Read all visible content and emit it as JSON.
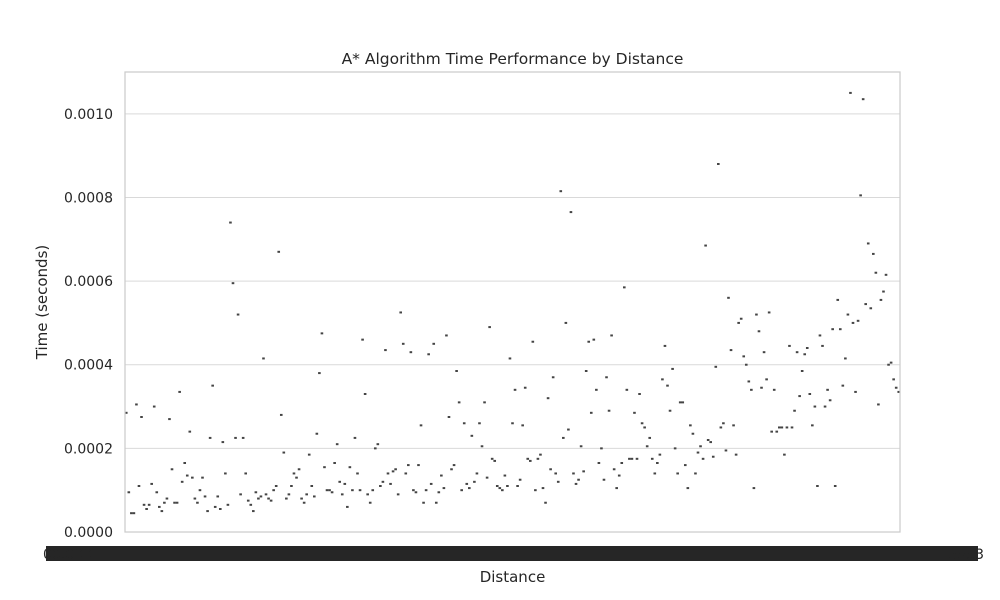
{
  "chart_data": {
    "type": "scatter",
    "title": "A* Algorithm Time Performance by Distance",
    "xlabel": "Distance",
    "ylabel": "Time (seconds)",
    "ylim": [
      0,
      0.0011
    ],
    "yticks": [
      "0.0000",
      "0.0002",
      "0.0004",
      "0.0006",
      "0.0008",
      "0.0010"
    ],
    "ytick_values": [
      0,
      0.0002,
      0.0004,
      0.0006,
      0.0008,
      0.001
    ],
    "grid": true,
    "x_axis_note": "categorical; overlapping unreadable tick labels",
    "x_left_label": "00.000",
    "x_right_label": "5553",
    "series": [
      {
        "values": [
          0.000285,
          9.5e-05,
          4.5e-05,
          4.5e-05,
          0.000305,
          0.00011,
          0.000275,
          6.5e-05,
          5.5e-05,
          6.5e-05,
          0.000115,
          0.0003,
          9.5e-05,
          6e-05,
          5e-05,
          7e-05,
          8e-05,
          0.00027,
          0.00015,
          7e-05,
          7e-05,
          0.000335,
          0.00012,
          0.000165,
          0.000135,
          0.00024,
          0.00013,
          8e-05,
          7e-05,
          0.0001,
          0.00013,
          8.5e-05,
          5e-05,
          0.000225,
          0.00035,
          6e-05,
          8.5e-05,
          5.5e-05,
          0.000215,
          0.00014,
          6.5e-05,
          0.00074,
          0.000595,
          0.000225,
          0.00052,
          9e-05,
          0.000225,
          0.00014,
          7.5e-05,
          6.5e-05,
          5e-05,
          9.5e-05,
          8e-05,
          8.5e-05,
          0.000415,
          9e-05,
          8e-05,
          7.5e-05,
          0.0001,
          0.00011,
          0.00067,
          0.00028,
          0.00019,
          8e-05,
          9e-05,
          0.00011,
          0.00014,
          0.00013,
          0.00015,
          8e-05,
          7e-05,
          9e-05,
          0.000185,
          0.00011,
          8.5e-05,
          0.000235,
          0.00038,
          0.000475,
          0.000155,
          0.0001,
          0.0001,
          9.5e-05,
          0.000165,
          0.00021,
          0.00012,
          9e-05,
          0.000115,
          6e-05,
          0.000155,
          0.0001,
          0.000225,
          0.00014,
          0.0001,
          0.00046,
          0.00033,
          9e-05,
          7e-05,
          0.0001,
          0.0002,
          0.00021,
          0.00011,
          0.00012,
          0.000435,
          0.00014,
          0.000115,
          0.000145,
          0.00015,
          9e-05,
          0.000525,
          0.00045,
          0.00014,
          0.00016,
          0.00043,
          0.0001,
          9.5e-05,
          0.00016,
          0.000255,
          7e-05,
          0.0001,
          0.000425,
          0.000115,
          0.00045,
          7e-05,
          9.5e-05,
          0.000135,
          0.000105,
          0.00047,
          0.000275,
          0.00015,
          0.00016,
          0.000385,
          0.00031,
          0.0001,
          0.00026,
          0.000115,
          0.000105,
          0.00023,
          0.00012,
          0.00014,
          0.00026,
          0.000205,
          0.00031,
          0.00013,
          0.00049,
          0.000175,
          0.00017,
          0.00011,
          0.000105,
          0.0001,
          0.000135,
          0.00011,
          0.000415,
          0.00026,
          0.00034,
          0.00011,
          0.000125,
          0.000255,
          0.000345,
          0.000175,
          0.00017,
          0.000455,
          0.0001,
          0.000175,
          0.000185,
          0.000105,
          7e-05,
          0.00032,
          0.00015,
          0.00037,
          0.00014,
          0.00012,
          0.000815,
          0.000225,
          0.0005,
          0.000245,
          0.000765,
          0.00014,
          0.000115,
          0.000125,
          0.000205,
          0.000145,
          0.000385,
          0.000455,
          0.000285,
          0.00046,
          0.00034,
          0.000165,
          0.0002,
          0.000125,
          0.00037,
          0.00029,
          0.00047,
          0.00015,
          0.000105,
          0.000135,
          0.000165,
          0.000585,
          0.00034,
          0.000175,
          0.000175,
          0.000285,
          0.000175,
          0.00033,
          0.00026,
          0.00025,
          0.000205,
          0.000225,
          0.000175,
          0.00014,
          0.000165,
          0.000185,
          0.000365,
          0.000445,
          0.00035,
          0.00029,
          0.00039,
          0.0002,
          0.00014,
          0.00031,
          0.00031,
          0.00016,
          0.000105,
          0.000255,
          0.000235,
          0.00014,
          0.00019,
          0.000205,
          0.000175,
          0.000685,
          0.00022,
          0.000215,
          0.00018,
          0.000395,
          0.00088,
          0.00025,
          0.00026,
          0.000195,
          0.00056,
          0.000435,
          0.000255,
          0.000185,
          0.0005,
          0.00051,
          0.00042,
          0.0004,
          0.00036,
          0.00034,
          0.000105,
          0.00052,
          0.00048,
          0.000345,
          0.00043,
          0.000365,
          0.000525,
          0.00024,
          0.00034,
          0.00024,
          0.00025,
          0.00025,
          0.000185,
          0.00025,
          0.000445,
          0.00025,
          0.00029,
          0.00043,
          0.000325,
          0.000385,
          0.000425,
          0.00044,
          0.00033,
          0.000255,
          0.0003,
          0.00011,
          0.00047,
          0.000445,
          0.0003,
          0.00034,
          0.000315,
          0.000485,
          0.00011,
          0.000555,
          0.000485,
          0.00035,
          0.000415,
          0.00052,
          0.00105,
          0.0005,
          0.000335,
          0.000505,
          0.000805,
          0.001035,
          0.000545,
          0.00069,
          0.000535,
          0.000665,
          0.00062,
          0.000305,
          0.000555,
          0.000575,
          0.000615,
          0.0004,
          0.000405,
          0.000365,
          0.000345,
          0.000335
        ]
      }
    ]
  }
}
